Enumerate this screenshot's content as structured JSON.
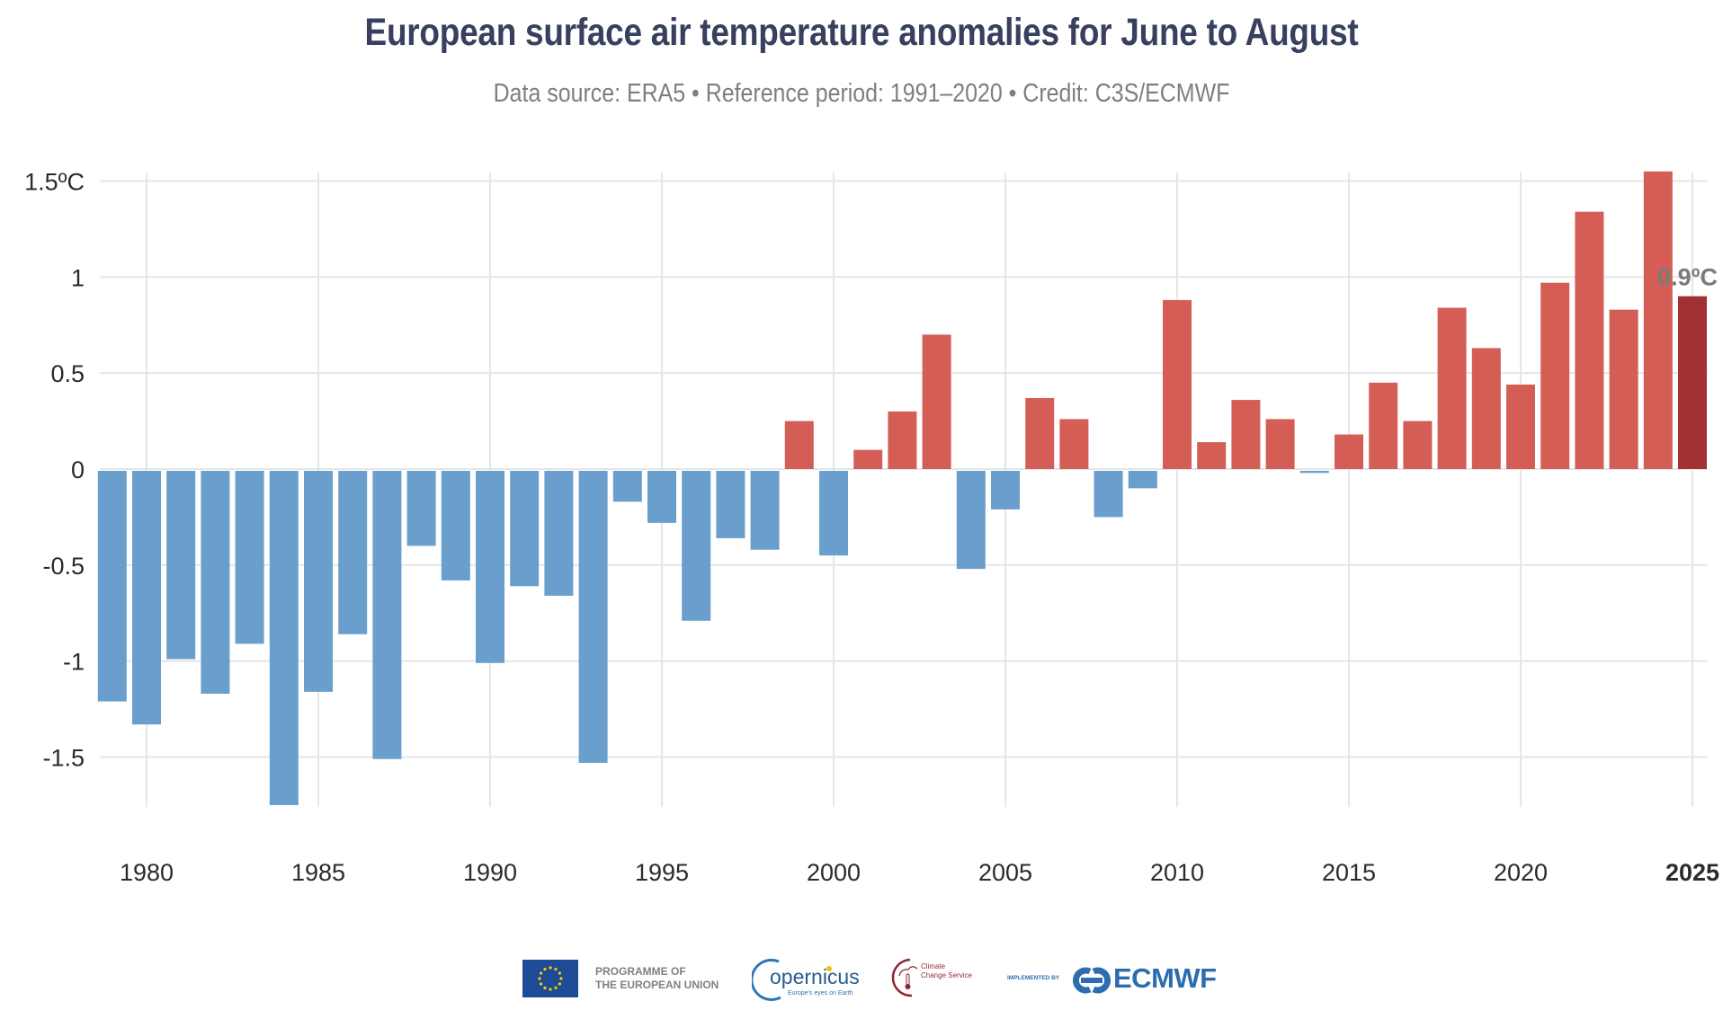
{
  "title": "European surface air temperature anomalies for June to August",
  "subtitle": "Data source: ERA5 • Reference period: 1991–2020 • Credit: C3S/ECMWF",
  "colors": {
    "negative": "#6a9ecc",
    "positive": "#d45e56",
    "highlight": "#a33033",
    "title": "#37405e",
    "subtitle": "#7e7e7e",
    "grid": "#e6e6e6"
  },
  "chart_data": {
    "type": "bar",
    "title": "European surface air temperature anomalies for June to August",
    "subtitle": "Data source: ERA5 • Reference period: 1991–2020 • Credit: C3S/ECMWF",
    "xlabel": "",
    "ylabel": "",
    "unit": "ºC",
    "ylim": [
      -1.78,
      1.55
    ],
    "xlim": [
      1979,
      2025
    ],
    "grid": true,
    "legend": "none",
    "y_ticks": [
      {
        "value": 1.5,
        "label": "1.5ºC"
      },
      {
        "value": 1,
        "label": "1"
      },
      {
        "value": 0.5,
        "label": "0.5"
      },
      {
        "value": 0,
        "label": "0"
      },
      {
        "value": -0.5,
        "label": "-0.5"
      },
      {
        "value": -1,
        "label": "-1"
      },
      {
        "value": -1.5,
        "label": "-1.5"
      }
    ],
    "x_ticks": [
      {
        "value": 1980,
        "label": "1980",
        "bold": false
      },
      {
        "value": 1985,
        "label": "1985",
        "bold": false
      },
      {
        "value": 1990,
        "label": "1990",
        "bold": false
      },
      {
        "value": 1995,
        "label": "1995",
        "bold": false
      },
      {
        "value": 2000,
        "label": "2000",
        "bold": false
      },
      {
        "value": 2005,
        "label": "2005",
        "bold": false
      },
      {
        "value": 2010,
        "label": "2010",
        "bold": false
      },
      {
        "value": 2015,
        "label": "2015",
        "bold": false
      },
      {
        "value": 2020,
        "label": "2020",
        "bold": false
      },
      {
        "value": 2025,
        "label": "2025",
        "bold": true
      }
    ],
    "categories": [
      1979,
      1980,
      1981,
      1982,
      1983,
      1984,
      1985,
      1986,
      1987,
      1988,
      1989,
      1990,
      1991,
      1992,
      1993,
      1994,
      1995,
      1996,
      1997,
      1998,
      1999,
      2000,
      2001,
      2002,
      2003,
      2004,
      2005,
      2006,
      2007,
      2008,
      2009,
      2010,
      2011,
      2012,
      2013,
      2014,
      2015,
      2016,
      2017,
      2018,
      2019,
      2020,
      2021,
      2022,
      2023,
      2024,
      2025
    ],
    "values": [
      -1.21,
      -1.33,
      -0.99,
      -1.17,
      -0.91,
      -1.75,
      -1.16,
      -0.86,
      -1.51,
      -0.4,
      -0.58,
      -1.01,
      -0.61,
      -0.66,
      -1.53,
      -0.17,
      -0.28,
      -0.79,
      -0.36,
      -0.42,
      0.25,
      -0.45,
      0.1,
      0.3,
      0.7,
      -0.52,
      -0.21,
      0.37,
      0.26,
      -0.25,
      -0.1,
      0.88,
      0.14,
      0.36,
      0.26,
      -0.02,
      0.18,
      0.45,
      0.25,
      0.84,
      0.63,
      0.44,
      0.97,
      1.34,
      0.83,
      1.55,
      0.9
    ],
    "highlight_year": 2025,
    "annotations": [
      {
        "year": 2025,
        "text": "0.9ºC"
      }
    ]
  },
  "footer": {
    "eu_line1": "PROGRAMME OF",
    "eu_line2": "THE EUROPEAN UNION",
    "copernicus": "opernicus",
    "copernicus_tagline": "Europe's eyes on Earth",
    "c3s_line1": "Climate",
    "c3s_line2": "Change Service",
    "implemented_by": "IMPLEMENTED BY",
    "ecmwf": "ECMWF"
  }
}
